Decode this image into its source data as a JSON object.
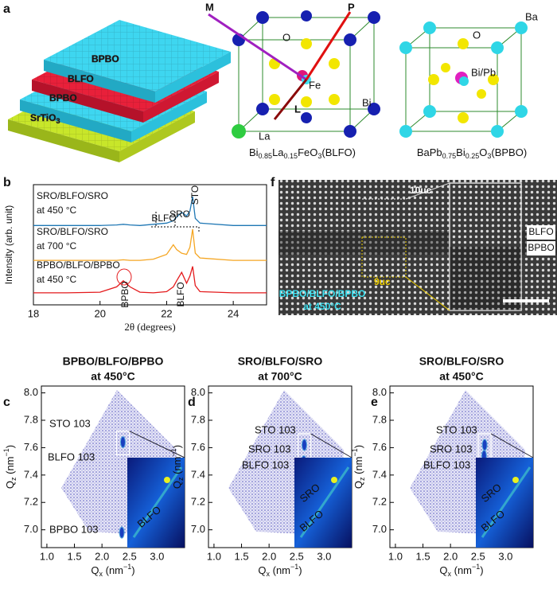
{
  "figure": {
    "panel_labels": [
      "a",
      "b",
      "c",
      "d",
      "e",
      "f"
    ],
    "a": {
      "layers": [
        "BPBO",
        "BLFO",
        "BPBO"
      ],
      "substrate": [
        "SrTiO",
        "3"
      ],
      "blfo_atoms": [
        "M",
        "P",
        "O",
        "Fe",
        "L",
        "Bi",
        "La"
      ],
      "blfo_formula": [
        "Bi",
        "0.85",
        "La",
        "0.15",
        "FeO",
        "3",
        "(BLFO)"
      ],
      "bpbo_atoms": [
        "Ba",
        "O",
        "Bi/Pb"
      ],
      "bpbo_formula": [
        "BaPb",
        "0.75",
        "Bi",
        "0.25",
        "O",
        "3",
        "(BPBO)"
      ]
    },
    "f": {
      "labels": [
        "10uc",
        "9uc",
        "BLFO",
        "BPBO"
      ],
      "sample": [
        "BPBO/BLFO/BPBO",
        "at 450°C"
      ]
    }
  },
  "chart_data": [
    {
      "type": "line",
      "xlabel": "2θ (degrees)",
      "ylabel": "Intensity (arb. unit)",
      "xlim": [
        18,
        25
      ],
      "xticks": [
        18,
        20,
        22,
        24
      ],
      "ylim": [
        0,
        10
      ],
      "x": [
        18,
        19,
        20,
        20.5,
        20.7,
        20.9,
        21.2,
        21.6,
        22,
        22.2,
        22.3,
        22.45,
        22.6,
        22.7,
        22.78,
        22.86,
        23,
        24,
        25
      ],
      "series": [
        {
          "name": "SRO/BLFO/SRO",
          "condition": "at 450 °C",
          "color": "#1f77b4",
          "values": [
            6.6,
            6.6,
            6.6,
            6.65,
            6.7,
            6.65,
            6.6,
            6.7,
            6.8,
            7.0,
            7.3,
            7.7,
            7.4,
            7.8,
            9.0,
            7.2,
            6.8,
            6.6,
            6.6
          ]
        },
        {
          "name": "SRO/BLFO/SRO",
          "condition": "at 700 °C",
          "color": "#f5a623",
          "values": [
            3.7,
            3.7,
            3.7,
            3.7,
            3.75,
            3.7,
            3.7,
            3.8,
            4.2,
            5.0,
            4.6,
            4.3,
            4.2,
            4.8,
            6.3,
            4.3,
            3.9,
            3.7,
            3.7
          ]
        },
        {
          "name": "BPBO/BLFO/BPBO",
          "condition": "at 450 °C",
          "color": "#e41a1c",
          "values": [
            1.0,
            1.0,
            1.05,
            1.5,
            2.0,
            1.5,
            1.05,
            1.0,
            1.1,
            1.5,
            2.0,
            2.7,
            1.8,
            2.4,
            3.2,
            1.6,
            1.1,
            1.0,
            1.0
          ]
        }
      ],
      "peak_labels": [
        "BLFO",
        "SRO",
        "STO",
        "BPBO",
        "BLFO"
      ]
    },
    {
      "type": "map",
      "title": [
        "BPBO/BLFO/BPBO",
        "at 450°C"
      ],
      "title_color": "#e8141b",
      "xlabel": [
        "Q",
        "x",
        " (nm",
        "−1",
        ")"
      ],
      "ylabel": [
        "Q",
        "z",
        " (nm",
        "−1",
        ")"
      ],
      "xlim": [
        0.9,
        3.5
      ],
      "xticks": [
        {
          "value": 1,
          "label": "1.0"
        },
        1.5,
        {
          "value": 2,
          "label": "2.0"
        },
        2.5,
        {
          "value": 3,
          "label": "3.0"
        }
      ],
      "ylim": [
        6.87,
        8.05
      ],
      "yticks": [
        {
          "value": 7,
          "label": "7.0"
        },
        7.2,
        7.4,
        7.6,
        7.8,
        {
          "value": 8,
          "label": "8.0"
        }
      ],
      "x": [
        2.38,
        2.36
      ],
      "values": [
        7.64,
        6.98
      ],
      "peak_labels": [
        "STO 103",
        "BLFO 103",
        "BPBO 103"
      ],
      "inset_labels": [
        "BLFO"
      ]
    },
    {
      "type": "map",
      "title": [
        "SRO/BLFO/SRO",
        "at 700°C"
      ],
      "title_color": "#f2bd00",
      "xlabel": [
        "Q",
        "x",
        " (nm",
        "−1",
        ")"
      ],
      "ylabel": [
        "Q",
        "z",
        " (nm",
        "−1",
        ")"
      ],
      "xlim": [
        0.9,
        3.5
      ],
      "xticks": [
        {
          "value": 1,
          "label": "1.0"
        },
        1.5,
        {
          "value": 2,
          "label": "2.0"
        },
        2.5,
        {
          "value": 3,
          "label": "3.0"
        }
      ],
      "ylim": [
        6.87,
        8.05
      ],
      "yticks": [
        {
          "value": 7,
          "label": "7.0"
        },
        7.2,
        7.4,
        7.6,
        7.8,
        {
          "value": 8,
          "label": "8.0"
        }
      ],
      "x": [
        2.64,
        2.63
      ],
      "values": [
        7.62,
        7.5
      ],
      "peak_labels": [
        "STO 103",
        "SRO 103",
        "BLFO 103"
      ],
      "inset_labels": [
        "SRO",
        "BLFO"
      ]
    },
    {
      "type": "map",
      "title": [
        "SRO/BLFO/SRO",
        "at 450°C"
      ],
      "title_color": "#1c6fc4",
      "xlabel": [
        "Q",
        "x",
        " (nm",
        "−1",
        ")"
      ],
      "ylabel": [
        "Q",
        "z",
        " (nm",
        "−1",
        ")"
      ],
      "xlim": [
        0.9,
        3.5
      ],
      "xticks": [
        {
          "value": 1,
          "label": "1.0"
        },
        1.5,
        {
          "value": 2,
          "label": "2.0"
        },
        2.5,
        {
          "value": 3,
          "label": "3.0"
        }
      ],
      "ylim": [
        6.87,
        8.05
      ],
      "yticks": [
        {
          "value": 7,
          "label": "7.0"
        },
        7.2,
        7.4,
        7.6,
        7.8,
        {
          "value": 8,
          "label": "8.0"
        }
      ],
      "x": [
        2.62,
        2.61
      ],
      "values": [
        7.62,
        7.54
      ],
      "peak_labels": [
        "STO 103",
        "SRO 103",
        "BLFO 103"
      ],
      "inset_labels": [
        "SRO",
        "BLFO"
      ]
    }
  ]
}
